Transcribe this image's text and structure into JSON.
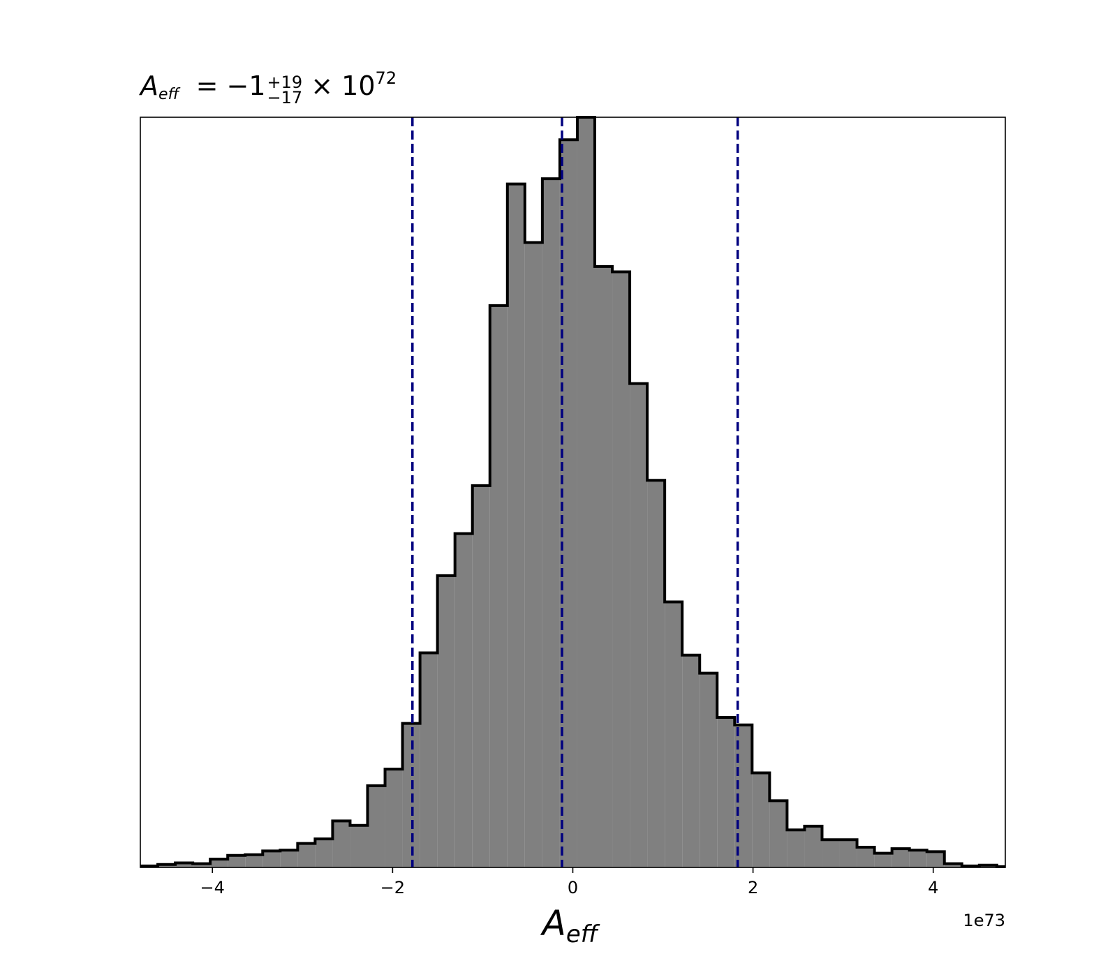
{
  "title": {
    "symbol": "A",
    "subscript": "eff",
    "equals": "= −1",
    "plus": "+19",
    "minus": "−17",
    "times": " × 10",
    "exponent": "72"
  },
  "chart_data": {
    "type": "histogram",
    "xlabel": "A_eff",
    "xlabel_symbol": "A",
    "xlabel_subscript": "eff",
    "offset_text": "1e73",
    "x_unit_multiplier": 1e+73,
    "xlim": [
      -4.8,
      4.8
    ],
    "ylim": [
      0,
      1.0
    ],
    "y_axis_visible": false,
    "x_ticks": [
      -4,
      -2,
      0,
      2,
      4
    ],
    "x_tick_labels": [
      "−4",
      "−2",
      "0",
      "2",
      "4"
    ],
    "bin_edges": [
      -4.8,
      -4.606,
      -4.412,
      -4.218,
      -4.024,
      -3.83,
      -3.636,
      -3.442,
      -3.248,
      -3.054,
      -2.86,
      -2.666,
      -2.472,
      -2.278,
      -2.084,
      -1.89,
      -1.696,
      -1.502,
      -1.308,
      -1.114,
      -0.92,
      -0.726,
      -0.532,
      -0.338,
      -0.144,
      0.05,
      0.244,
      0.438,
      0.632,
      0.826,
      1.02,
      1.214,
      1.408,
      1.602,
      1.796,
      1.99,
      2.184,
      2.378,
      2.572,
      2.766,
      2.96,
      3.154,
      3.348,
      3.542,
      3.736,
      3.93,
      4.124,
      4.318,
      4.512,
      4.706,
      4.9
    ],
    "counts": [
      0.002,
      0.004,
      0.006,
      0.005,
      0.011,
      0.016,
      0.017,
      0.022,
      0.023,
      0.032,
      0.038,
      0.062,
      0.056,
      0.109,
      0.131,
      0.192,
      0.286,
      0.389,
      0.445,
      0.509,
      0.749,
      0.911,
      0.833,
      0.918,
      0.97,
      1.0,
      0.801,
      0.794,
      0.645,
      0.516,
      0.354,
      0.283,
      0.259,
      0.2,
      0.19,
      0.126,
      0.089,
      0.05,
      0.055,
      0.037,
      0.037,
      0.027,
      0.019,
      0.025,
      0.023,
      0.021,
      0.005,
      0.002,
      0.003,
      0.001
    ],
    "fill_color": "#808080",
    "edge_color": "#000000",
    "quantile_lines": [
      -1.78,
      -0.12,
      1.83
    ],
    "quantile_line_color": "#00007f",
    "quantile_line_style": "dashed"
  }
}
